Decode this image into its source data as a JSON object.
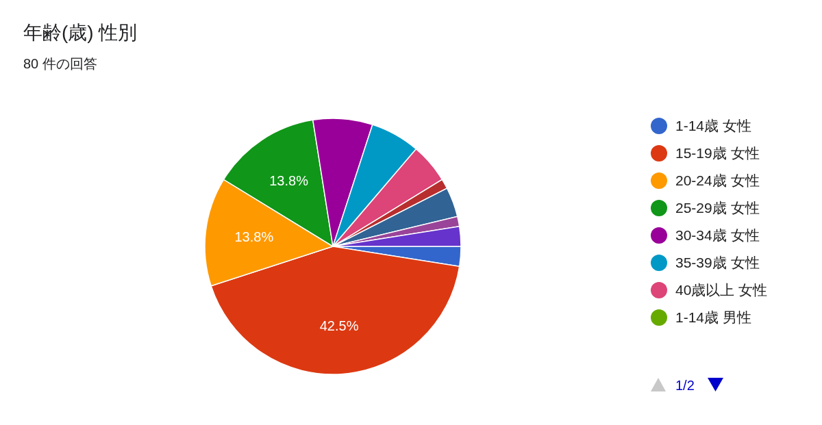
{
  "chart_data": {
    "type": "pie",
    "title": "年齢(歳) 性別",
    "subtitle": "80 件の回答",
    "categories": [
      "1-14歳 女性",
      "15-19歳 女性",
      "20-24歳 女性",
      "25-29歳 女性",
      "30-34歳 女性",
      "35-39歳 女性",
      "40歳以上 女性",
      "1-14歳 男性",
      null,
      null,
      null,
      null
    ],
    "values": [
      2.5,
      42.5,
      13.75,
      13.75,
      7.5,
      6.25,
      5,
      0,
      1.25,
      3.75,
      1.25,
      2.5
    ],
    "colors": [
      "#3366cc",
      "#dc3912",
      "#ff9900",
      "#109618",
      "#990099",
      "#0099c6",
      "#dd4477",
      "#66aa00",
      "#b82e2e",
      "#316395",
      "#994499",
      "#6633cc"
    ],
    "value_labels": [
      null,
      "42.5%",
      "13.8%",
      "13.8%",
      null,
      null,
      null,
      null,
      null,
      null,
      null,
      null
    ],
    "legend": "right",
    "annotations": [
      "1/2"
    ]
  }
}
